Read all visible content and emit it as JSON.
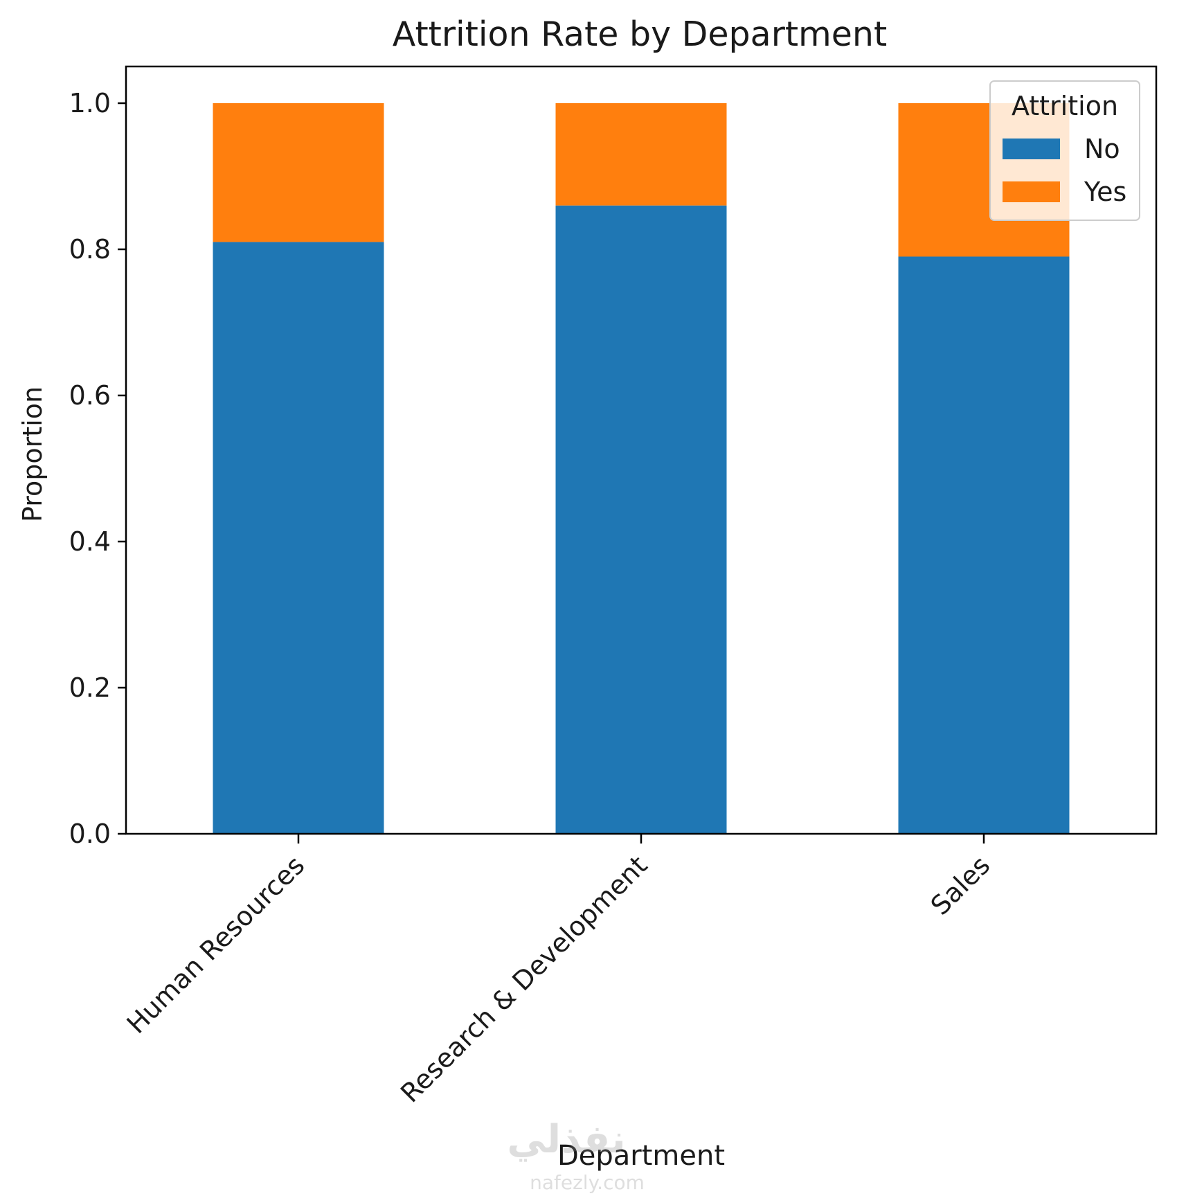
{
  "chart_data": {
    "type": "bar",
    "stacked": true,
    "title": "Attrition Rate by Department",
    "xlabel": "Department",
    "ylabel": "Proportion",
    "categories": [
      "Human Resources",
      "Research & Development",
      "Sales"
    ],
    "series": [
      {
        "name": "No",
        "values": [
          0.81,
          0.86,
          0.79
        ],
        "color": "#1f77b4"
      },
      {
        "name": "Yes",
        "values": [
          0.19,
          0.14,
          0.21
        ],
        "color": "#ff7f0e"
      }
    ],
    "ylim": [
      0,
      1.05
    ],
    "yticks": [
      "0.0",
      "0.2",
      "0.4",
      "0.6",
      "0.8",
      "1.0"
    ],
    "legend": {
      "title": "Attrition",
      "placement": "top-right"
    },
    "grid": false
  },
  "watermark": {
    "arabic": "نفذلي",
    "latin": "nafezly.com"
  }
}
